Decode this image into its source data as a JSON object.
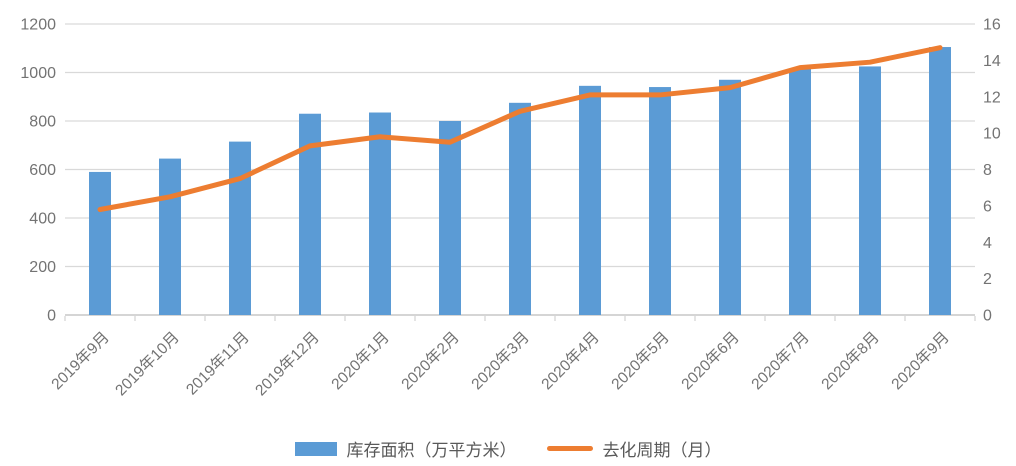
{
  "chart_data": {
    "type": "combo",
    "title": "",
    "categories": [
      "2019年9月",
      "2019年10月",
      "2019年11月",
      "2019年12月",
      "2020年1月",
      "2020年2月",
      "2020年3月",
      "2020年4月",
      "2020年5月",
      "2020年6月",
      "2020年7月",
      "2020年8月",
      "2020年9月"
    ],
    "series": [
      {
        "name": "库存面积（万平方米）",
        "type": "bar",
        "axis": "left",
        "color": "#5B9BD5",
        "values": [
          590,
          645,
          715,
          830,
          835,
          800,
          875,
          945,
          940,
          970,
          1015,
          1025,
          1105
        ]
      },
      {
        "name": "去化周期（月）",
        "type": "line",
        "axis": "right",
        "color": "#ED7D31",
        "values": [
          5.8,
          6.5,
          7.5,
          9.3,
          9.8,
          9.5,
          11.2,
          12.1,
          12.1,
          12.5,
          13.6,
          13.9,
          14.7
        ]
      }
    ],
    "axes": {
      "left": {
        "min": 0,
        "max": 1200,
        "step": 200,
        "tick_labels": [
          "0",
          "200",
          "400",
          "600",
          "800",
          "1000",
          "1200"
        ]
      },
      "right": {
        "min": 0,
        "max": 16,
        "step": 2,
        "tick_labels": [
          "0",
          "2",
          "4",
          "6",
          "8",
          "10",
          "12",
          "14",
          "16"
        ]
      }
    },
    "grid": "horizontal",
    "legend_position": "bottom",
    "x_label_rotation_deg": -45,
    "colors": {
      "bar": "#5B9BD5",
      "line": "#ED7D31",
      "gridline": "#D9D9D9",
      "axis_line": "#CFCFCF",
      "tick_mark": "#D2D2D2",
      "tick_label": "#737373",
      "legend_text": "#595959",
      "background": "#FFFFFF"
    }
  }
}
